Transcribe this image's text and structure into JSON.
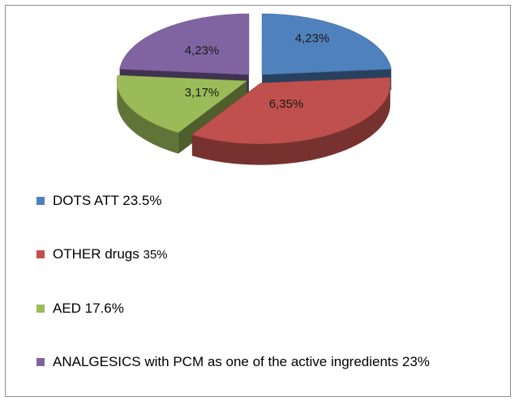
{
  "chart_data": {
    "type": "pie",
    "title": "",
    "slices": [
      {
        "label": "4,23%",
        "value": 4.23,
        "color": "#4f81bd",
        "legend": "DOTS ATT 23.5%"
      },
      {
        "label": "6,35%",
        "value": 6.35,
        "color": "#c0504d",
        "legend": "OTHER drugs 35%"
      },
      {
        "label": "3,17%",
        "value": 3.17,
        "color": "#9bbb59",
        "legend": "AED 17.6%"
      },
      {
        "label": "4,23%",
        "value": 4.23,
        "color": "#8064a2",
        "legend": "ANALGESICS with PCM as one of the active ingredients 23%"
      }
    ],
    "legend_position": "bottom",
    "exploded": true,
    "style": "3d"
  },
  "legend": {
    "items": [
      {
        "text": "DOTS ATT 23.5%",
        "color": "#4f81bd"
      },
      {
        "main": "OTHER drugs ",
        "small": "35%",
        "color": "#c0504d"
      },
      {
        "text": "AED 17.6%",
        "color": "#9bbb59"
      },
      {
        "text": "ANALGESICS with PCM as one of the active ingredients 23%",
        "color": "#8064a2"
      }
    ]
  }
}
